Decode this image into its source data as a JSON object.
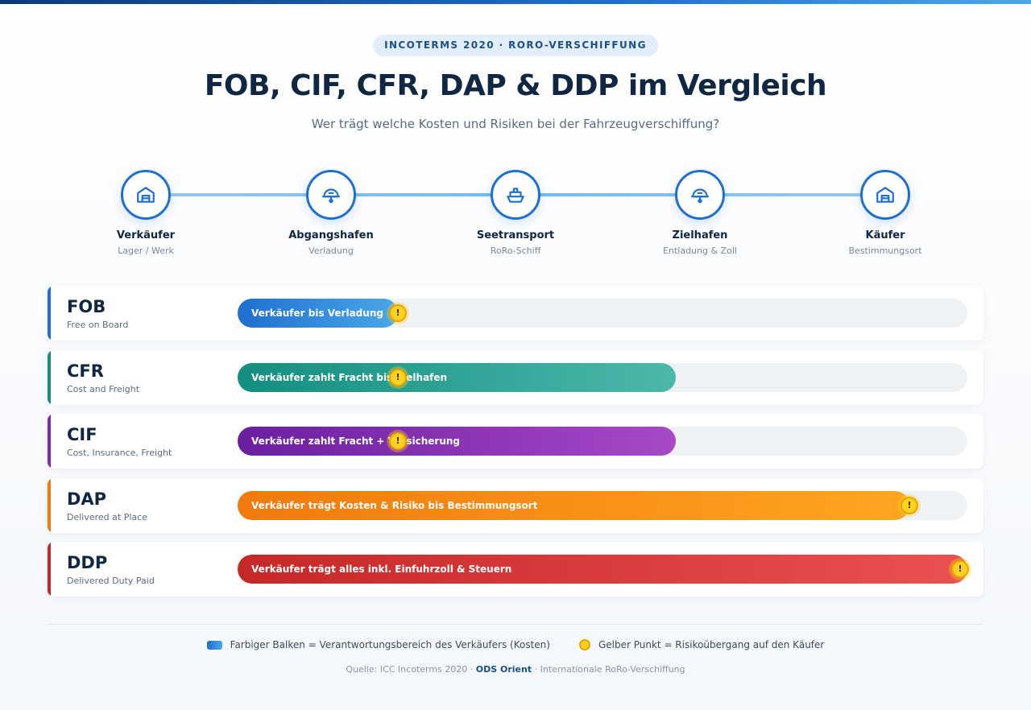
{
  "header": {
    "badge": "INCOTERMS 2020 · RORO-VERSCHIFFUNG",
    "title": "FOB, CIF, CFR, DAP & DDP im Vergleich",
    "subtitle": "Wer trägt welche Kosten und Risiken bei der Fahrzeugverschiffung?"
  },
  "timeline": {
    "steps": [
      {
        "label": "Verkäufer",
        "sub": "Lager / Werk",
        "icon": "warehouse-icon"
      },
      {
        "label": "Abgangshafen",
        "sub": "Verladung",
        "icon": "port-crane-icon"
      },
      {
        "label": "Seetransport",
        "sub": "RoRo-Schiff",
        "icon": "ship-icon"
      },
      {
        "label": "Zielhafen",
        "sub": "Entladung & Zoll",
        "icon": "port-crane-icon"
      },
      {
        "label": "Käufer",
        "sub": "Bestimmungsort",
        "icon": "warehouse-icon"
      }
    ]
  },
  "terms": [
    {
      "code": "FOB",
      "full": "Free on Board",
      "bar_text": "Verkäufer bis Verladung",
      "seller_share": 0.22,
      "risk_point": 0.22,
      "color_start": "#1e6fd0",
      "color_end": "#4aa8e8",
      "accent": "#1e6fd0"
    },
    {
      "code": "CFR",
      "full": "Cost and Freight",
      "bar_text": "Verkäufer zahlt Fracht bis Zielhafen",
      "seller_share": 0.6,
      "risk_point": 0.22,
      "color_start": "#138f7f",
      "color_end": "#4cb8aa",
      "accent": "#138f7f"
    },
    {
      "code": "CIF",
      "full": "Cost, Insurance, Freight",
      "bar_text": "Verkäufer zahlt Fracht + Versicherung",
      "seller_share": 0.6,
      "risk_point": 0.22,
      "color_start": "#6a1fa0",
      "color_end": "#a849c7",
      "accent": "#7b2bb0"
    },
    {
      "code": "DAP",
      "full": "Delivered at Place",
      "bar_text": "Verkäufer trägt Kosten & Risiko bis Bestimmungsort",
      "seller_share": 0.92,
      "risk_point": 0.92,
      "color_start": "#f07a0c",
      "color_end": "#ffa521",
      "accent": "#f07a0c"
    },
    {
      "code": "DDP",
      "full": "Delivered Duty Paid",
      "bar_text": "Verkäufer trägt alles inkl. Einfuhrzoll & Steuern",
      "seller_share": 1.0,
      "risk_point": 0.99,
      "color_start": "#c62828",
      "color_end": "#ea5151",
      "accent": "#c62828"
    }
  ],
  "legend": {
    "bar": "Farbiger Balken = Verantwortungsbereich des Verkäufers (Kosten)",
    "dot": "Gelber Punkt = Risikoübergang auf den Käufer"
  },
  "footer": {
    "prefix": "Quelle: ICC Incoterms 2020 ·",
    "brand": "ODS Orient",
    "suffix": "· Internationale RoRo-Verschiffung"
  },
  "risk_symbol": "!"
}
